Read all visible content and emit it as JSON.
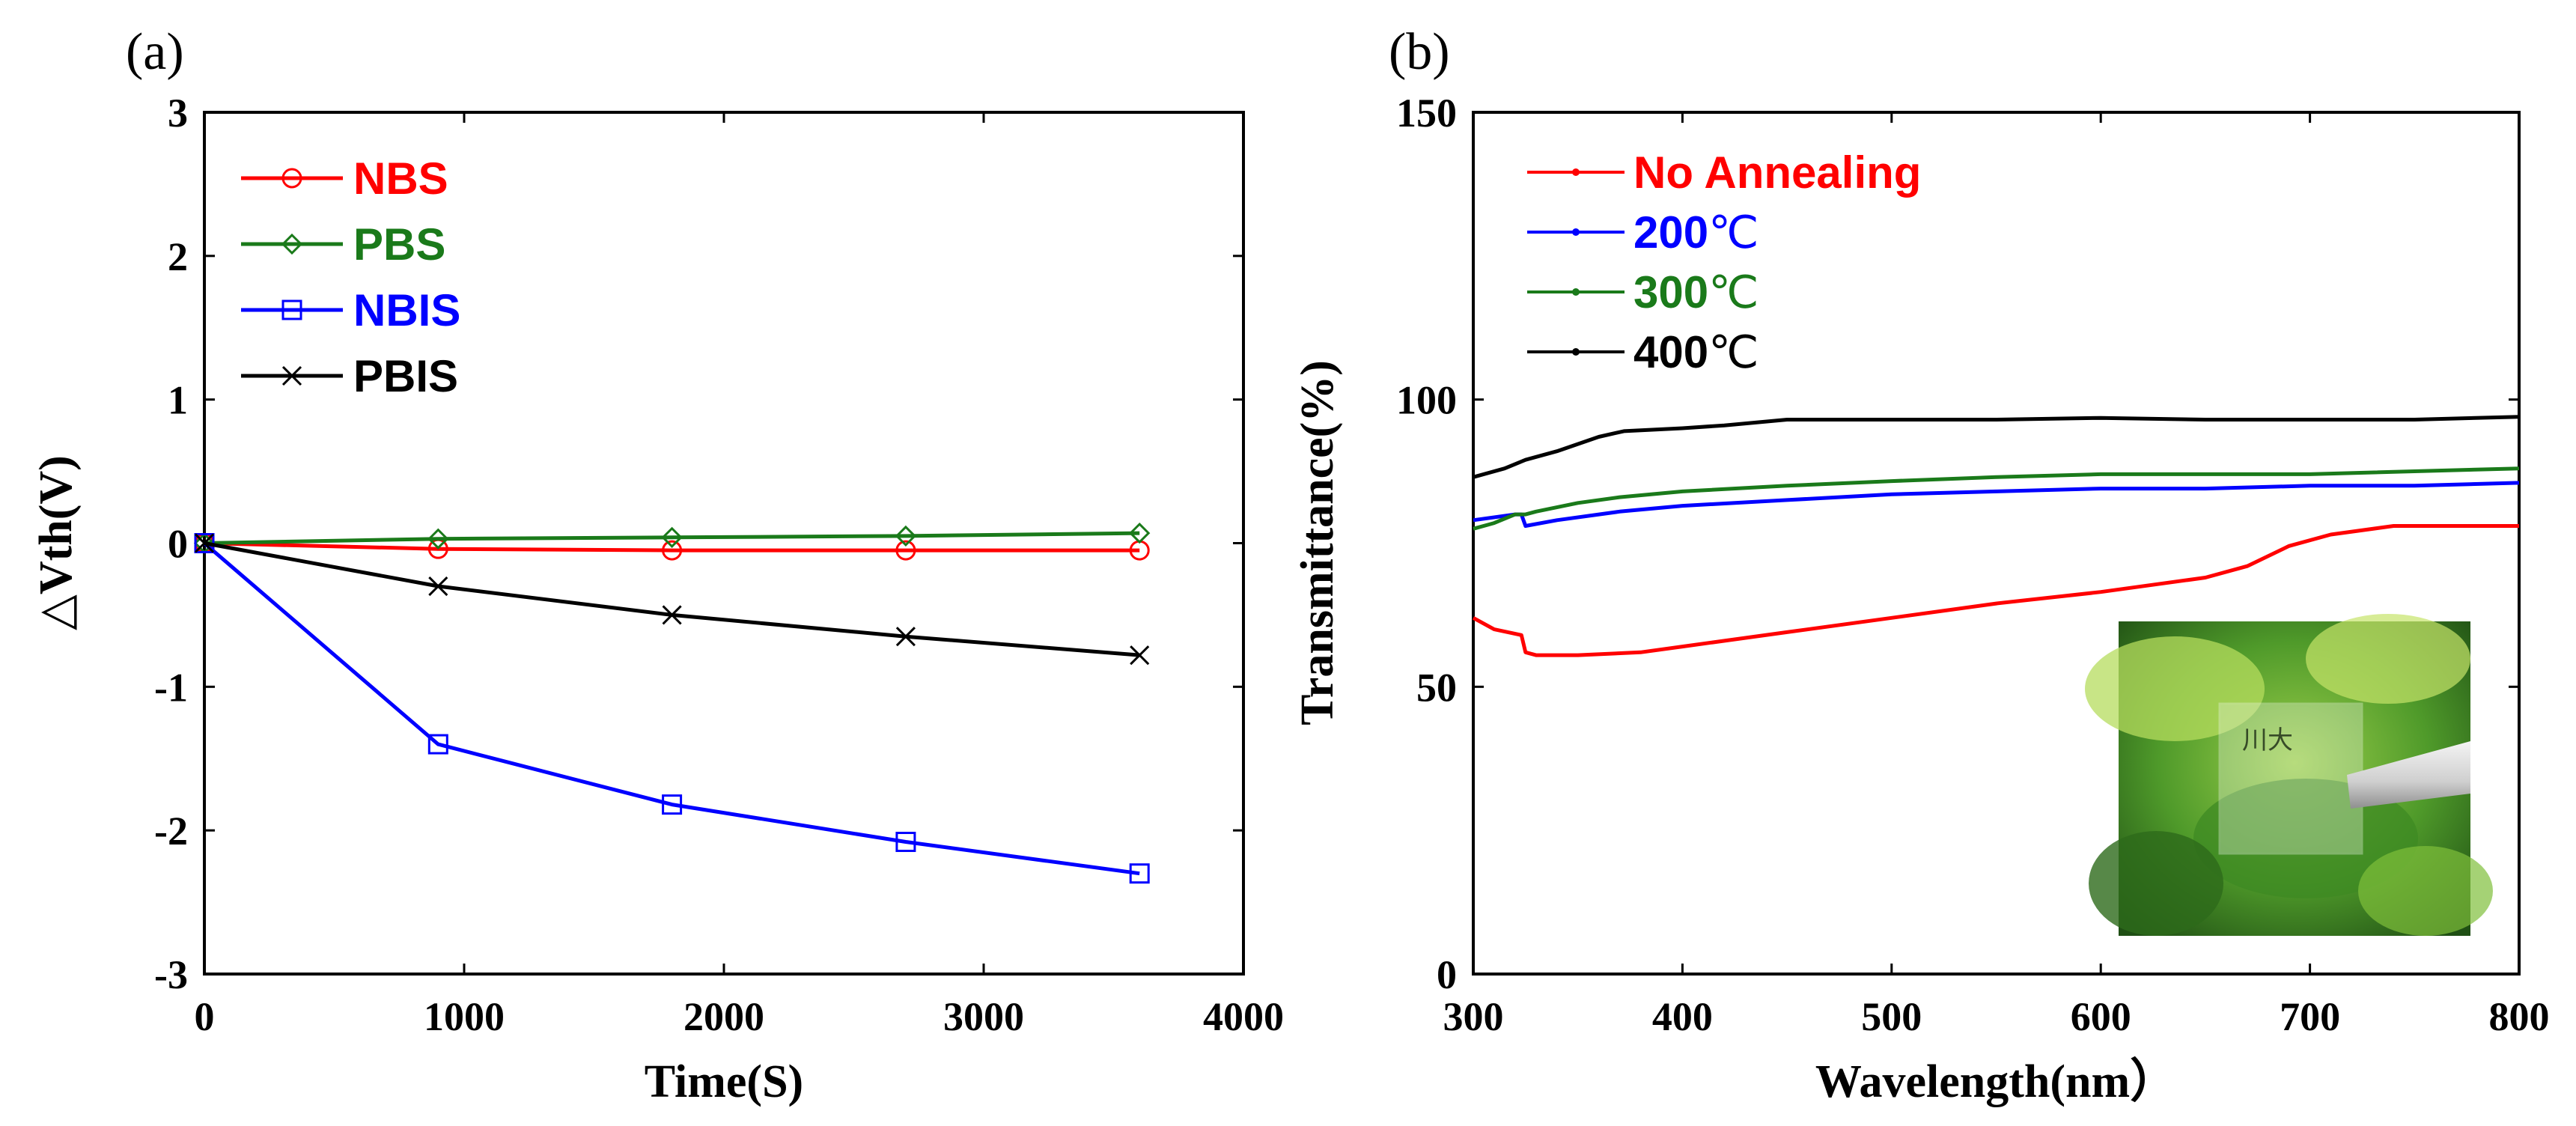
{
  "chart_data": [
    {
      "panel": "(a)",
      "type": "line",
      "xlabel": "Time(S)",
      "ylabel": "△Vth(V)",
      "xlim": [
        0,
        4000
      ],
      "ylim": [
        -3,
        3
      ],
      "xticks": [
        "0",
        "1000",
        "2000",
        "3000",
        "4000"
      ],
      "yticks": [
        "-3",
        "-2",
        "-1",
        "0",
        "1",
        "2",
        "3"
      ],
      "x": [
        0,
        900,
        1800,
        2700,
        3600
      ],
      "series": [
        {
          "name": "NBS",
          "color": "#ff0000",
          "marker": "circle",
          "values": [
            0,
            -0.04,
            -0.05,
            -0.05,
            -0.05
          ]
        },
        {
          "name": "PBS",
          "color": "#1a7a1a",
          "marker": "diamond",
          "values": [
            0,
            0.03,
            0.04,
            0.05,
            0.07
          ]
        },
        {
          "name": "NBIS",
          "color": "#0000ff",
          "marker": "square",
          "values": [
            0,
            -1.4,
            -1.82,
            -2.08,
            -2.3
          ]
        },
        {
          "name": "PBIS",
          "color": "#000000",
          "marker": "x",
          "values": [
            0,
            -0.3,
            -0.5,
            -0.65,
            -0.78
          ]
        }
      ]
    },
    {
      "panel": "(b)",
      "type": "line",
      "xlabel": "Wavelength(nm）",
      "ylabel": "Transmittance(%)",
      "xlim": [
        300,
        800
      ],
      "ylim": [
        0,
        150
      ],
      "xticks": [
        "300",
        "400",
        "500",
        "600",
        "700",
        "800"
      ],
      "yticks": [
        "0",
        "50",
        "100",
        "150"
      ],
      "inset_photo": "transparent-device-sample-photo",
      "series": [
        {
          "name": "No Annealing",
          "unit": "",
          "color": "#ff0000",
          "x": [
            300,
            310,
            323,
            325,
            330,
            350,
            380,
            400,
            450,
            500,
            550,
            600,
            650,
            670,
            690,
            710,
            740,
            770,
            800
          ],
          "values": [
            62,
            60,
            59,
            56,
            55.5,
            55.5,
            56,
            57,
            59.5,
            62,
            64.5,
            66.5,
            69,
            71,
            74.5,
            76.5,
            78,
            78,
            78
          ]
        },
        {
          "name": "200",
          "unit": "℃",
          "color": "#0000ff",
          "x": [
            300,
            320,
            323,
            325,
            340,
            370,
            400,
            450,
            500,
            550,
            600,
            650,
            700,
            750,
            800
          ],
          "values": [
            79,
            80,
            80,
            78,
            79,
            80.5,
            81.5,
            82.5,
            83.5,
            84,
            84.5,
            84.5,
            85,
            85,
            85.5
          ]
        },
        {
          "name": "300",
          "unit": "℃",
          "color": "#1a7a1a",
          "x": [
            300,
            310,
            320,
            325,
            330,
            350,
            370,
            400,
            450,
            500,
            550,
            600,
            650,
            700,
            800
          ],
          "values": [
            77.5,
            78.5,
            80,
            80,
            80.5,
            82,
            83,
            84,
            85,
            85.8,
            86.5,
            87,
            87,
            87,
            88
          ]
        },
        {
          "name": "400",
          "unit": "℃",
          "color": "#000000",
          "x": [
            300,
            315,
            325,
            340,
            360,
            372,
            400,
            420,
            450,
            500,
            550,
            600,
            650,
            700,
            750,
            800
          ],
          "values": [
            86.5,
            88,
            89.5,
            91,
            93.5,
            94.5,
            95,
            95.5,
            96.5,
            96.5,
            96.5,
            96.8,
            96.5,
            96.5,
            96.5,
            97
          ]
        }
      ]
    }
  ]
}
